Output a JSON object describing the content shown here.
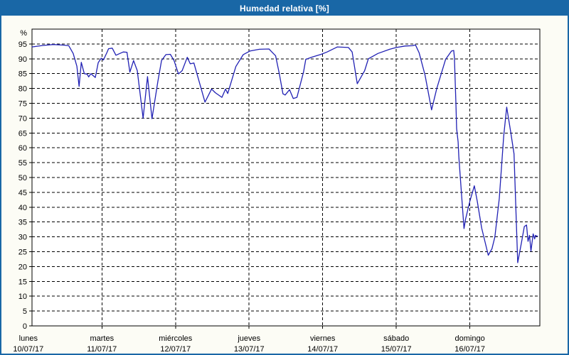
{
  "window": {
    "title": "Humedad relativa [%]"
  },
  "colors": {
    "titlebar_bg": "#1967a6",
    "titlebar_text": "#ffffff",
    "window_bg": "#fcfcf5",
    "plot_bg": "#ffffff",
    "grid": "#000000",
    "axis": "#000000",
    "series_line": "#2121b4",
    "tick_text": "#000000"
  },
  "chart_data": {
    "type": "line",
    "title": "Humedad relativa [%]",
    "ylabel": "%",
    "y_unit_label": "%",
    "ylim": [
      0,
      100
    ],
    "y_ticks": [
      0,
      5,
      10,
      15,
      20,
      25,
      30,
      35,
      40,
      45,
      50,
      55,
      60,
      65,
      70,
      75,
      80,
      85,
      90,
      95
    ],
    "grid": "dashed",
    "legend_position": "none",
    "x_axis": {
      "days": [
        {
          "name": "lunes",
          "date": "10/07/17"
        },
        {
          "name": "martes",
          "date": "11/07/17"
        },
        {
          "name": "miércoles",
          "date": "12/07/17"
        },
        {
          "name": "jueves",
          "date": "13/07/17"
        },
        {
          "name": "viernes",
          "date": "14/07/17"
        },
        {
          "name": "sábado",
          "date": "15/07/17"
        },
        {
          "name": "domingo",
          "date": "16/07/17"
        }
      ]
    },
    "series": [
      {
        "name": "Humedad relativa",
        "color": "#2121b4",
        "x_unit": "days_since_2017-07-10_00:00",
        "points": [
          [
            0.05,
            94
          ],
          [
            0.2,
            94.5
          ],
          [
            0.34,
            94.8
          ],
          [
            0.49,
            94.6
          ],
          [
            0.55,
            94.4
          ],
          [
            0.61,
            91.8
          ],
          [
            0.66,
            87.5
          ],
          [
            0.69,
            80.7
          ],
          [
            0.72,
            88.8
          ],
          [
            0.76,
            85
          ],
          [
            0.8,
            84.8
          ],
          [
            0.82,
            83.9
          ],
          [
            0.85,
            85
          ],
          [
            0.91,
            83.7
          ],
          [
            0.95,
            88.7
          ],
          [
            0.99,
            90.2
          ],
          [
            1.02,
            89.6
          ],
          [
            1.07,
            92.2
          ],
          [
            1.09,
            93.4
          ],
          [
            1.14,
            93.6
          ],
          [
            1.19,
            91.2
          ],
          [
            1.29,
            92.3
          ],
          [
            1.34,
            92.2
          ],
          [
            1.38,
            85.5
          ],
          [
            1.43,
            89.4
          ],
          [
            1.48,
            86
          ],
          [
            1.56,
            70
          ],
          [
            1.62,
            84
          ],
          [
            1.68,
            69.8
          ],
          [
            1.76,
            82.3
          ],
          [
            1.81,
            89.4
          ],
          [
            1.87,
            91.4
          ],
          [
            1.93,
            91.5
          ],
          [
            1.98,
            89.4
          ],
          [
            2.04,
            84.9
          ],
          [
            2.09,
            86
          ],
          [
            2.16,
            90.5
          ],
          [
            2.2,
            88.3
          ],
          [
            2.25,
            88.6
          ],
          [
            2.4,
            75.4
          ],
          [
            2.49,
            79.8
          ],
          [
            2.54,
            78.6
          ],
          [
            2.63,
            77
          ],
          [
            2.68,
            79.8
          ],
          [
            2.71,
            78.3
          ],
          [
            2.82,
            87.4
          ],
          [
            2.92,
            91.4
          ],
          [
            3.01,
            92.6
          ],
          [
            3.14,
            93.2
          ],
          [
            3.27,
            93.3
          ],
          [
            3.36,
            91
          ],
          [
            3.41,
            85
          ],
          [
            3.46,
            78.2
          ],
          [
            3.49,
            77.8
          ],
          [
            3.55,
            79.6
          ],
          [
            3.6,
            76.6
          ],
          [
            3.65,
            77
          ],
          [
            3.74,
            85.6
          ],
          [
            3.77,
            89.8
          ],
          [
            3.86,
            90.6
          ],
          [
            3.98,
            91.5
          ],
          [
            4.06,
            92.3
          ],
          [
            4.2,
            94
          ],
          [
            4.35,
            93.8
          ],
          [
            4.4,
            92.3
          ],
          [
            4.47,
            81.6
          ],
          [
            4.57,
            86
          ],
          [
            4.62,
            90
          ],
          [
            4.75,
            91.8
          ],
          [
            4.91,
            93.2
          ],
          [
            5.0,
            93.8
          ],
          [
            5.12,
            94.3
          ],
          [
            5.22,
            94.4
          ],
          [
            5.26,
            94.7
          ],
          [
            5.31,
            92
          ],
          [
            5.39,
            84.6
          ],
          [
            5.48,
            72.8
          ],
          [
            5.55,
            80
          ],
          [
            5.67,
            89.8
          ],
          [
            5.75,
            92.6
          ],
          [
            5.78,
            92.8
          ],
          [
            5.79,
            90.4
          ],
          [
            5.81,
            75
          ],
          [
            5.82,
            66.5
          ],
          [
            5.84,
            62
          ],
          [
            5.85,
            57
          ],
          [
            5.89,
            43
          ],
          [
            5.92,
            32.8
          ],
          [
            5.94,
            35.8
          ],
          [
            6.0,
            42
          ],
          [
            6.06,
            47.2
          ],
          [
            6.1,
            42
          ],
          [
            6.16,
            33
          ],
          [
            6.25,
            23.8
          ],
          [
            6.3,
            26
          ],
          [
            6.34,
            30
          ],
          [
            6.4,
            43
          ],
          [
            6.46,
            64
          ],
          [
            6.5,
            73.7
          ],
          [
            6.55,
            66
          ],
          [
            6.6,
            58
          ],
          [
            6.62,
            43
          ],
          [
            6.65,
            21.3
          ],
          [
            6.7,
            28
          ],
          [
            6.74,
            33.5
          ],
          [
            6.77,
            34
          ],
          [
            6.79,
            28.5
          ],
          [
            6.81,
            30.5
          ],
          [
            6.83,
            25.2
          ],
          [
            6.86,
            31
          ],
          [
            6.88,
            29.3
          ],
          [
            6.89,
            30.5
          ],
          [
            6.92,
            30.2
          ]
        ]
      }
    ],
    "x_range_days": [
      0.05,
      6.95
    ]
  }
}
